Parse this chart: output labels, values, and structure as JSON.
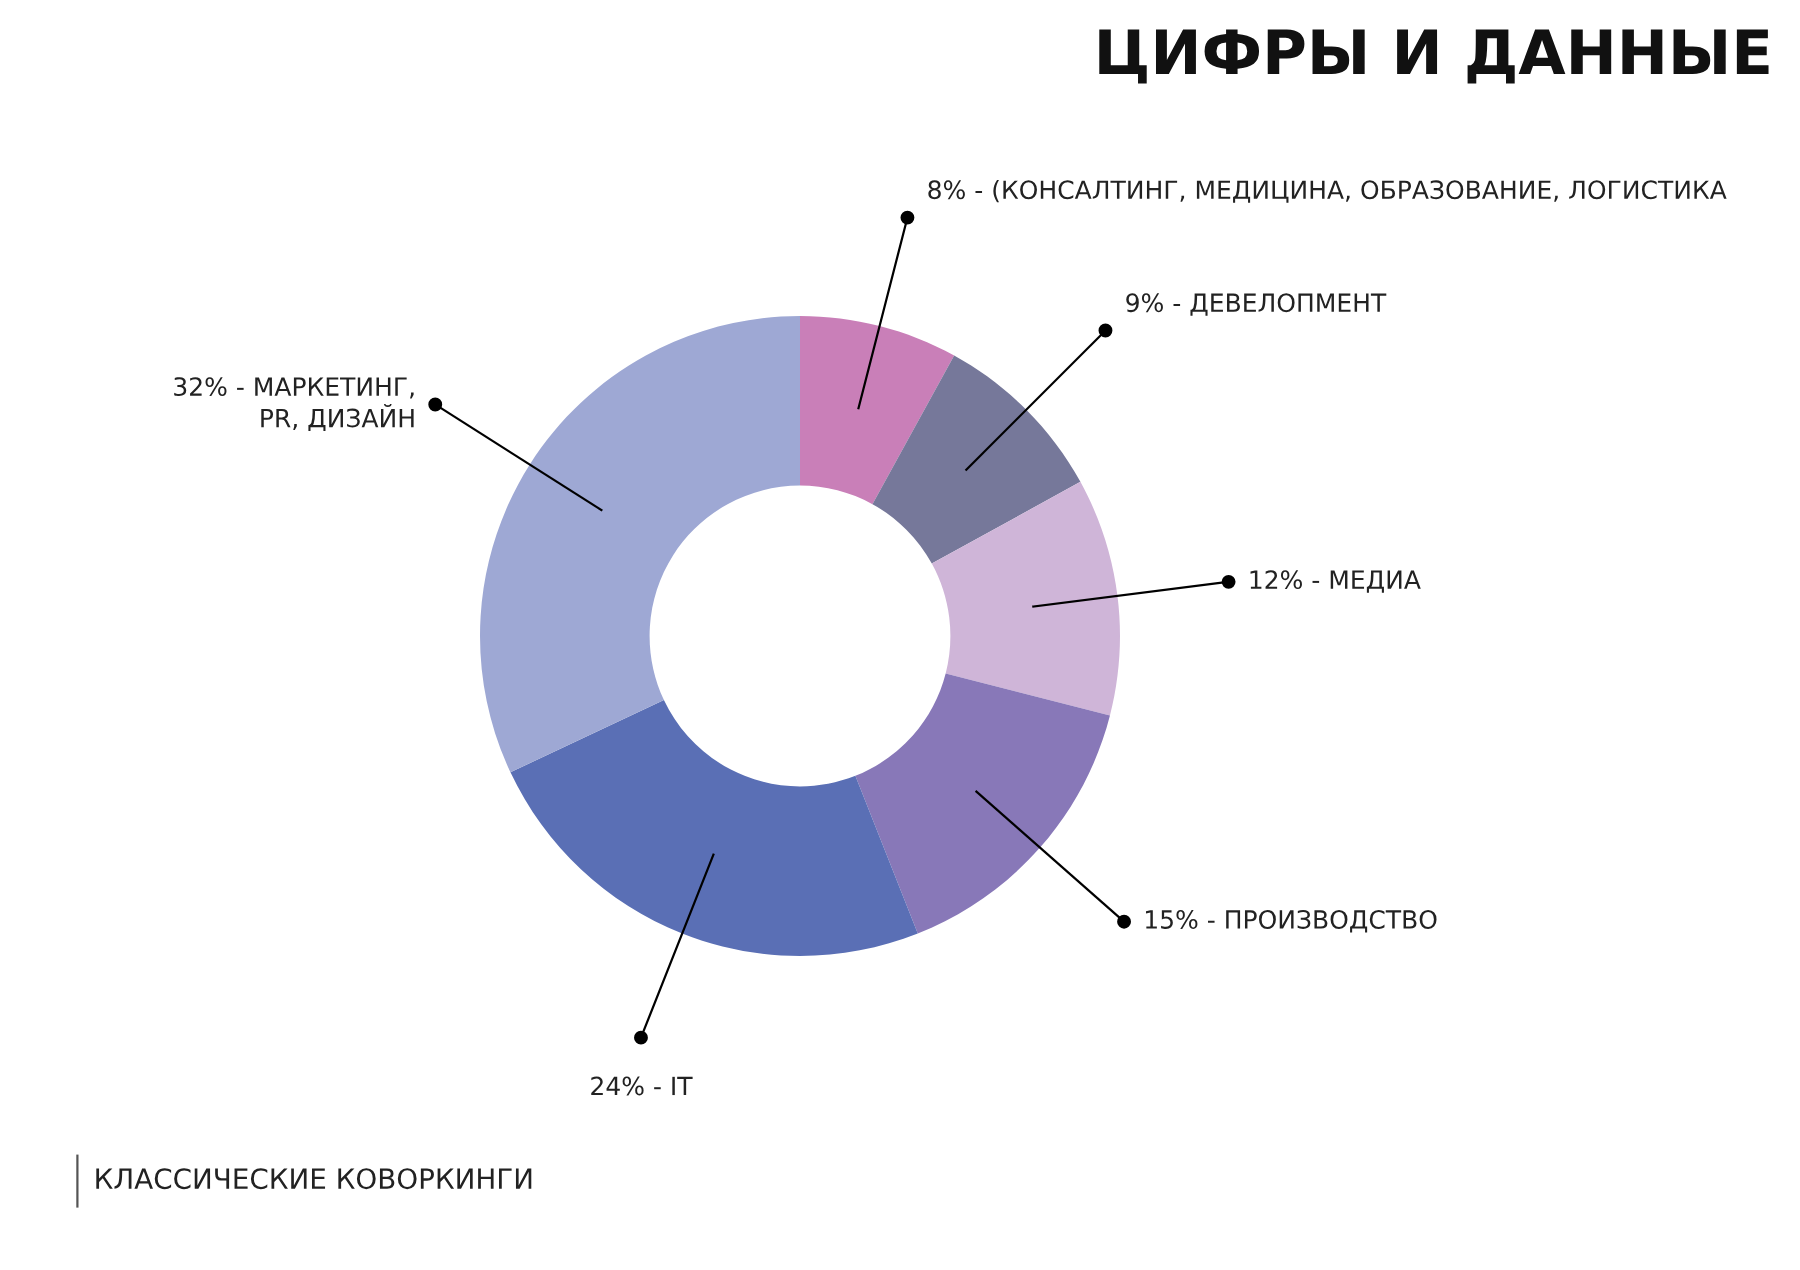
{
  "chart_data": {
    "type": "donut",
    "title": "ЦИФРЫ И ДАННЫЕ",
    "categories": [
      "8% - (КОНСАЛТИНГ, МЕДИЦИНА, ОБРАЗОВАНИЕ, ЛОГИСТИКА",
      "9% - ДЕВЕЛОПМЕНТ",
      "12% - МЕДИА",
      "15% - ПРОИЗВОДСТВО",
      "24% - IT",
      "32% - МАРКЕТИНГ,\nPR, ДИЗАЙН"
    ],
    "values": [
      8,
      9,
      12,
      15,
      24,
      32
    ],
    "colors": [
      "#c97fb8",
      "#76789a",
      "#cfb5d8",
      "#8878b8",
      "#5a6fb5",
      "#9ea8d4"
    ],
    "annotations": [
      "КЛАССИЧЕСКИЕ КОВОРКИНГИ"
    ],
    "legend": false
  }
}
